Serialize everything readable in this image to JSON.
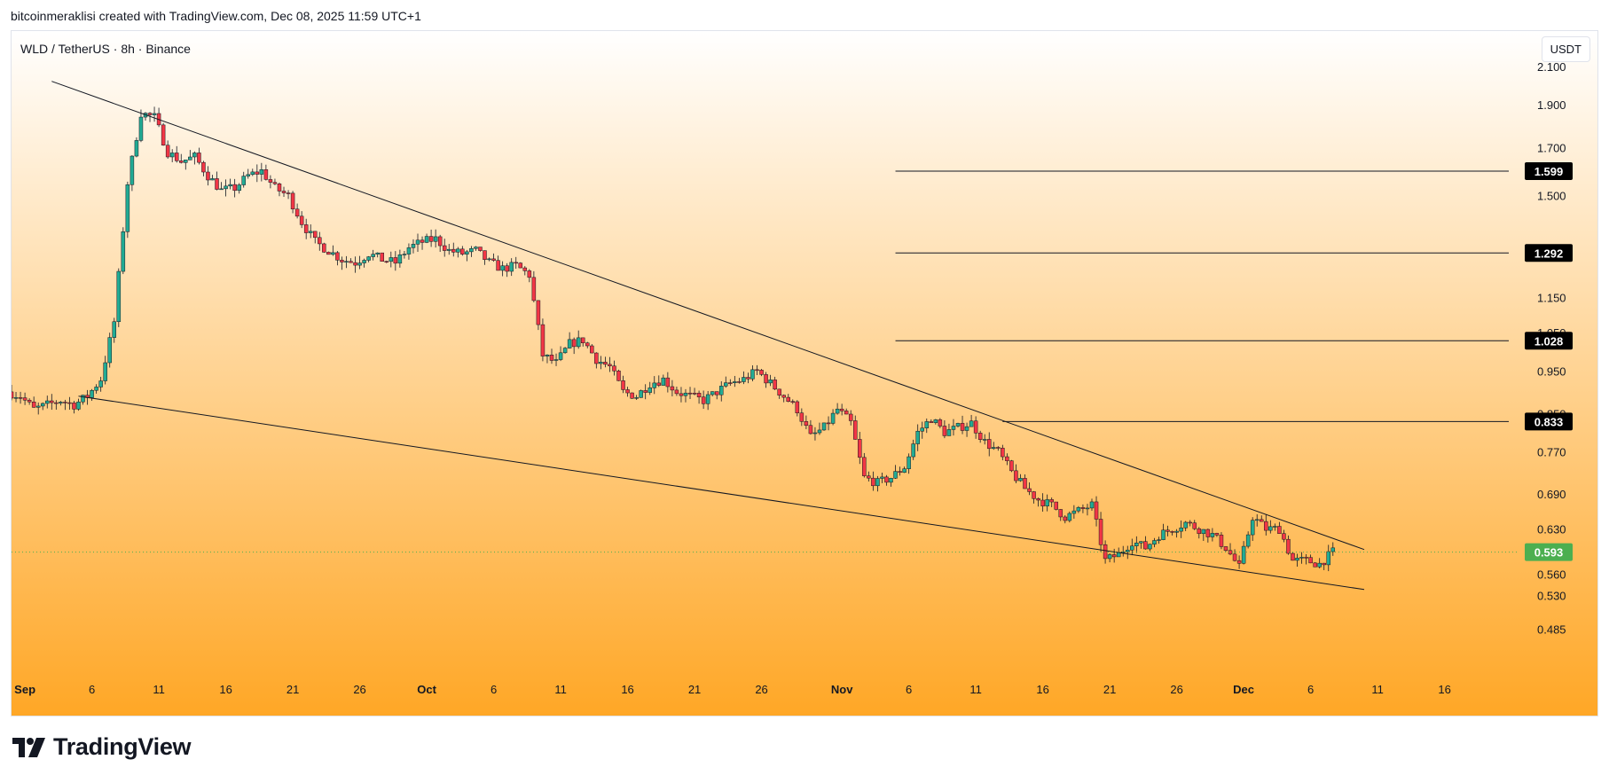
{
  "header": {
    "attribution": "bitcoinmeraklisi created with TradingView.com, Dec 08, 2025 11:59 UTC+1"
  },
  "chart": {
    "symbol_title": "WLD / TetherUS · 8h · Binance",
    "currency_button": "USDT"
  },
  "footer": {
    "logo_text": "TradingView"
  },
  "colors": {
    "up": "#22ab94",
    "down": "#f23645",
    "background_top": "#ffffff",
    "background_bottom": "#ffa726",
    "last_price_badge": "#4caf50",
    "level_badge": "#000000"
  },
  "chart_data": {
    "type": "candlestick",
    "timeframe": "8h",
    "y_scale": "log",
    "ylim": [
      0.445,
      2.25
    ],
    "y_ticks": [
      "2.100",
      "1.900",
      "1.700",
      "1.500",
      "1.150",
      "1.050",
      "0.950",
      "0.850",
      "0.770",
      "0.690",
      "0.630",
      "0.560",
      "0.530",
      "0.485"
    ],
    "x_ticks": [
      "Sep",
      "6",
      "11",
      "16",
      "21",
      "26",
      "Oct",
      "6",
      "11",
      "16",
      "21",
      "26",
      "Nov",
      "6",
      "11",
      "16",
      "21",
      "26",
      "Dec",
      "6",
      "11",
      "16"
    ],
    "x_range": [
      "2025-08-31",
      "2025-12-20"
    ],
    "last_price": "0.593",
    "horizontal_levels": [
      "1.599",
      "1.292",
      "1.028",
      "0.833"
    ],
    "trendlines": [
      {
        "from": {
          "date": "2025-09-03",
          "price": 2.02
        },
        "to": {
          "date": "2025-12-10",
          "price": 0.597
        }
      },
      {
        "from": {
          "date": "2025-09-05",
          "price": 0.89
        },
        "to": {
          "date": "2025-12-10",
          "price": 0.538
        }
      }
    ],
    "price_path": [
      [
        "2025-08-31",
        0.9
      ],
      [
        "2025-09-01",
        0.89
      ],
      [
        "2025-09-02",
        0.86
      ],
      [
        "2025-09-03",
        0.87
      ],
      [
        "2025-09-04",
        0.88
      ],
      [
        "2025-09-05",
        0.87
      ],
      [
        "2025-09-06",
        0.89
      ],
      [
        "2025-09-07",
        0.93
      ],
      [
        "2025-09-08",
        1.08
      ],
      [
        "2025-09-09",
        1.55
      ],
      [
        "2025-09-10",
        1.86
      ],
      [
        "2025-09-11",
        1.84
      ],
      [
        "2025-09-12",
        1.68
      ],
      [
        "2025-09-13",
        1.64
      ],
      [
        "2025-09-14",
        1.66
      ],
      [
        "2025-09-15",
        1.58
      ],
      [
        "2025-09-16",
        1.52
      ],
      [
        "2025-09-17",
        1.53
      ],
      [
        "2025-09-18",
        1.58
      ],
      [
        "2025-09-19",
        1.6
      ],
      [
        "2025-09-20",
        1.53
      ],
      [
        "2025-09-21",
        1.5
      ],
      [
        "2025-09-22",
        1.4
      ],
      [
        "2025-09-23",
        1.33
      ],
      [
        "2025-09-24",
        1.3
      ],
      [
        "2025-09-25",
        1.27
      ],
      [
        "2025-09-26",
        1.26
      ],
      [
        "2025-09-27",
        1.29
      ],
      [
        "2025-09-28",
        1.27
      ],
      [
        "2025-09-29",
        1.26
      ],
      [
        "2025-09-30",
        1.31
      ],
      [
        "2025-10-01",
        1.33
      ],
      [
        "2025-10-02",
        1.34
      ],
      [
        "2025-10-03",
        1.3
      ],
      [
        "2025-10-04",
        1.29
      ],
      [
        "2025-10-05",
        1.3
      ],
      [
        "2025-10-06",
        1.26
      ],
      [
        "2025-10-07",
        1.24
      ],
      [
        "2025-10-08",
        1.25
      ],
      [
        "2025-10-09",
        1.22
      ],
      [
        "2025-10-10",
        0.99
      ],
      [
        "2025-10-11",
        0.97
      ],
      [
        "2025-10-12",
        1.02
      ],
      [
        "2025-10-13",
        1.03
      ],
      [
        "2025-10-14",
        0.98
      ],
      [
        "2025-10-15",
        0.96
      ],
      [
        "2025-10-16",
        0.9
      ],
      [
        "2025-10-17",
        0.89
      ],
      [
        "2025-10-18",
        0.92
      ],
      [
        "2025-10-19",
        0.93
      ],
      [
        "2025-10-20",
        0.9
      ],
      [
        "2025-10-21",
        0.89
      ],
      [
        "2025-10-22",
        0.88
      ],
      [
        "2025-10-23",
        0.9
      ],
      [
        "2025-10-24",
        0.92
      ],
      [
        "2025-10-25",
        0.93
      ],
      [
        "2025-10-26",
        0.95
      ],
      [
        "2025-10-27",
        0.92
      ],
      [
        "2025-10-28",
        0.89
      ],
      [
        "2025-10-29",
        0.86
      ],
      [
        "2025-10-30",
        0.8
      ],
      [
        "2025-10-31",
        0.82
      ],
      [
        "2025-11-01",
        0.86
      ],
      [
        "2025-11-02",
        0.83
      ],
      [
        "2025-11-03",
        0.72
      ],
      [
        "2025-11-04",
        0.71
      ],
      [
        "2025-11-05",
        0.72
      ],
      [
        "2025-11-06",
        0.74
      ],
      [
        "2025-11-07",
        0.81
      ],
      [
        "2025-11-08",
        0.84
      ],
      [
        "2025-11-09",
        0.81
      ],
      [
        "2025-11-10",
        0.82
      ],
      [
        "2025-11-11",
        0.83
      ],
      [
        "2025-11-12",
        0.79
      ],
      [
        "2025-11-13",
        0.77
      ],
      [
        "2025-11-14",
        0.73
      ],
      [
        "2025-11-15",
        0.7
      ],
      [
        "2025-11-16",
        0.68
      ],
      [
        "2025-11-17",
        0.67
      ],
      [
        "2025-11-18",
        0.65
      ],
      [
        "2025-11-19",
        0.66
      ],
      [
        "2025-11-20",
        0.67
      ],
      [
        "2025-11-21",
        0.58
      ],
      [
        "2025-11-22",
        0.59
      ],
      [
        "2025-11-23",
        0.61
      ],
      [
        "2025-11-24",
        0.6
      ],
      [
        "2025-11-25",
        0.62
      ],
      [
        "2025-11-26",
        0.63
      ],
      [
        "2025-11-27",
        0.64
      ],
      [
        "2025-11-28",
        0.63
      ],
      [
        "2025-11-29",
        0.62
      ],
      [
        "2025-11-30",
        0.6
      ],
      [
        "2025-12-01",
        0.57
      ],
      [
        "2025-12-02",
        0.65
      ],
      [
        "2025-12-03",
        0.63
      ],
      [
        "2025-12-04",
        0.63
      ],
      [
        "2025-12-05",
        0.58
      ],
      [
        "2025-12-06",
        0.58
      ],
      [
        "2025-12-07",
        0.575
      ],
      [
        "2025-12-08",
        0.593
      ]
    ]
  }
}
